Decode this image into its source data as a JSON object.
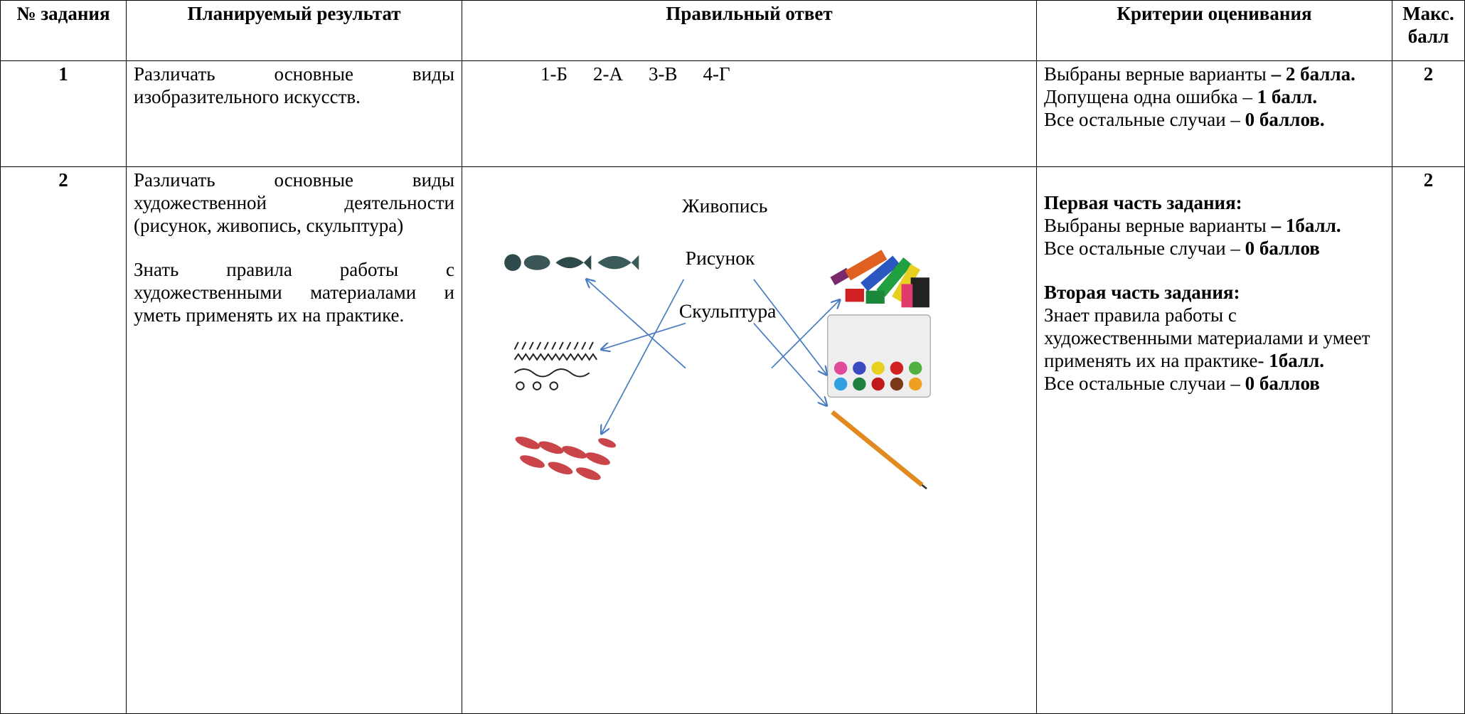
{
  "header": {
    "number": "№ задания",
    "result": "Планируемый результат",
    "answer": "Правильный ответ",
    "criteria": "Критерии  оценивания",
    "max": "Макс. балл"
  },
  "rows": [
    {
      "number": "1",
      "result": [
        "Различать основные виды изобразительного искусств."
      ],
      "answer": [
        "1-Б",
        "2-А",
        "3-В",
        "4-Г"
      ],
      "criteria": [
        {
          "text": "Выбраны верные варианты ",
          "bold": "– 2 балла."
        },
        {
          "text": "Допущена одна ошибка – ",
          "bold": "1 балл."
        },
        {
          "text": "Все остальные случаи – ",
          "bold": "0 баллов."
        }
      ],
      "max": "2"
    },
    {
      "number": "2",
      "result": [
        "Различать основные виды художественной деятельности (рисунок, живопись, скульптура)",
        "Знать правила работы с художественными материалами и уметь применять их на практике."
      ],
      "answer": [
        "Живопись",
        "Рисунок",
        "Скульптура"
      ],
      "criteria": [
        {
          "heading": "Первая часть задания:"
        },
        {
          "text": "Выбраны верные варианты ",
          "bold": "– 1балл."
        },
        {
          "text": "Все остальные случаи – ",
          "bold": "0 баллов"
        },
        {
          "heading": "Вторая часть задания:"
        },
        {
          "text": "Знает  правила работы с художественными материалами и умеет применять их на практике- ",
          "bold": "1балл."
        },
        {
          "text": "Все остальные случаи – ",
          "bold": "0 баллов"
        }
      ],
      "max": "2"
    }
  ]
}
